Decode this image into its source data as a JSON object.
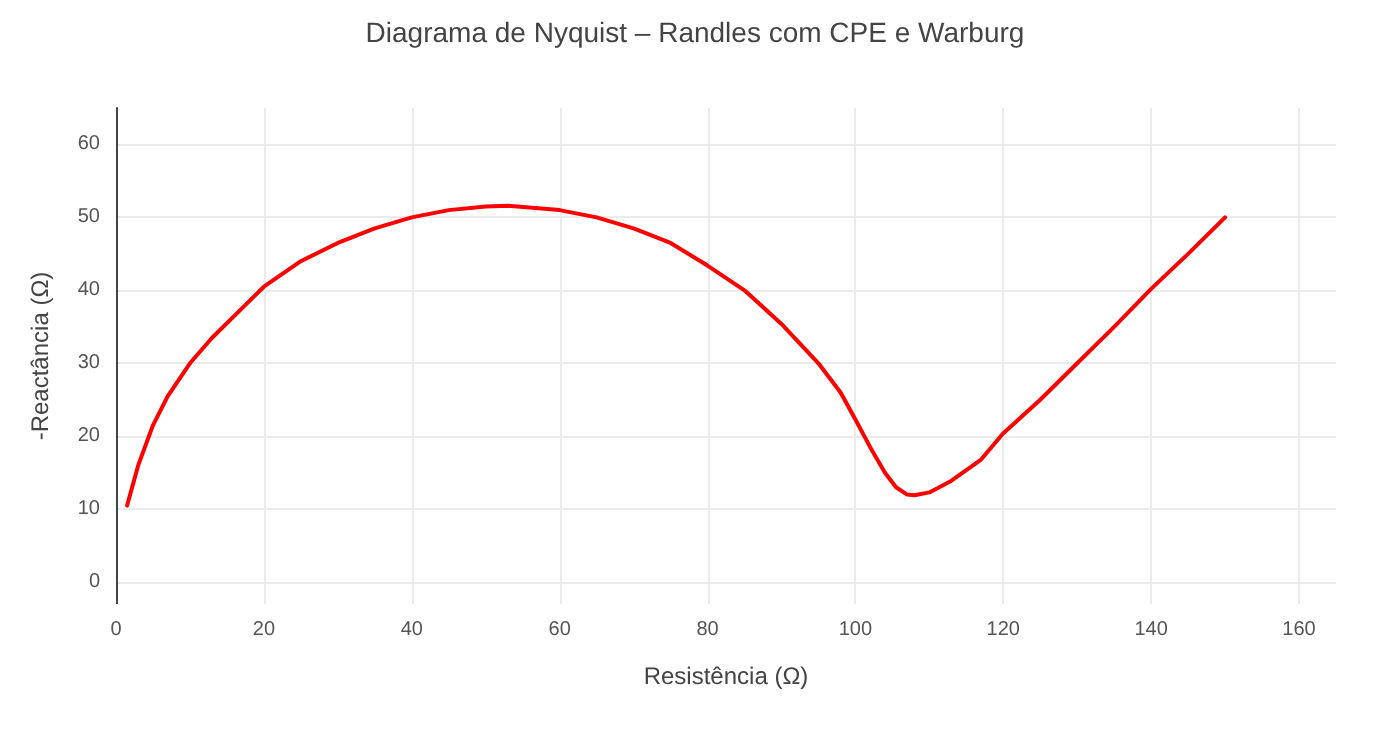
{
  "chart_data": {
    "type": "line",
    "title": "Diagrama de Nyquist – Randles com CPE e Warburg",
    "xlabel": "Resistência (Ω)",
    "ylabel": "-Reactância (Ω)",
    "xlim": [
      0,
      165
    ],
    "xticks": [
      0,
      20,
      40,
      60,
      80,
      100,
      120,
      140,
      160
    ],
    "ylim": [
      -3,
      65
    ],
    "yticks": [
      0,
      10,
      20,
      30,
      40,
      50,
      60
    ],
    "grid": true,
    "marker": "none",
    "line_style": "solid",
    "series": [
      {
        "color": "#ff0000",
        "x": [
          1.5,
          3,
          5,
          7,
          10,
          13,
          16,
          20,
          25,
          30,
          35,
          40,
          45,
          50,
          53,
          60,
          65,
          70,
          75,
          80,
          85,
          90,
          95,
          98,
          100,
          102,
          104,
          105.5,
          107,
          108,
          110,
          113,
          117,
          120,
          125,
          130,
          135,
          140,
          145,
          150
        ],
        "values": [
          10.5,
          16,
          21.5,
          25.5,
          30,
          33.5,
          36.5,
          40.5,
          44,
          46.5,
          48.5,
          50,
          51,
          51.5,
          51.6,
          51,
          50,
          48.5,
          46.5,
          43.4,
          40,
          35.4,
          30,
          26,
          22.3,
          18.5,
          15,
          13,
          12,
          11.9,
          12.3,
          13.9,
          16.8,
          20.4,
          25,
          30,
          35,
          40.2,
          45,
          50
        ]
      }
    ]
  }
}
